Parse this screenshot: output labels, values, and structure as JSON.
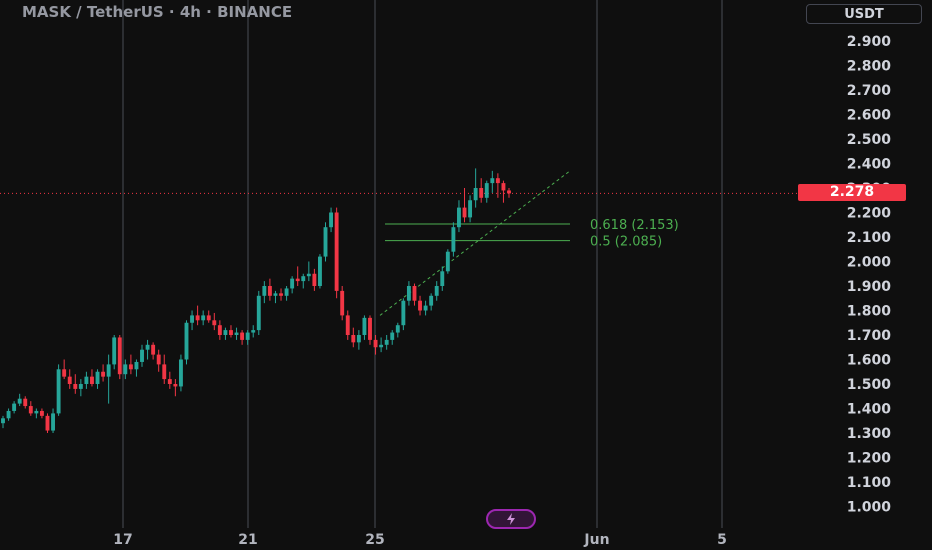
{
  "header": {
    "title": "MASK / TetherUS · 4h · BINANCE",
    "currency": "USDT"
  },
  "colors": {
    "background": "#0f0f0f",
    "up": "#26a69a",
    "down": "#f23645",
    "grid": "#4a4d55",
    "fib": "#4caf50",
    "text": "#d1d4dc",
    "replay": "#9c27b0"
  },
  "icons": {
    "replay": "lightning-bolt-icon"
  },
  "chart_data": {
    "type": "candlestick",
    "symbol": "MASK / TetherUS",
    "interval": "4h",
    "exchange": "BINANCE",
    "y_axis": {
      "ticks": [
        "2.900",
        "2.800",
        "2.700",
        "2.600",
        "2.500",
        "2.400",
        "2.300",
        "2.200",
        "2.100",
        "2.000",
        "1.900",
        "1.800",
        "1.700",
        "1.600",
        "1.500",
        "1.400",
        "1.300",
        "1.200",
        "1.100",
        "1.000"
      ],
      "range": [
        1.0,
        2.9
      ]
    },
    "x_axis": {
      "ticks": [
        "17",
        "21",
        "25",
        "Jun",
        "5"
      ]
    },
    "last_price": "2.278",
    "fib_levels": [
      {
        "ratio": 0.618,
        "price": 2.153,
        "label": "0.618 (2.153)"
      },
      {
        "ratio": 0.5,
        "price": 2.085,
        "label": "0.5 (2.085)"
      }
    ],
    "candles": [
      [
        1.34,
        1.37,
        1.32,
        1.36
      ],
      [
        1.36,
        1.4,
        1.35,
        1.39
      ],
      [
        1.39,
        1.43,
        1.38,
        1.42
      ],
      [
        1.42,
        1.46,
        1.41,
        1.44
      ],
      [
        1.44,
        1.45,
        1.4,
        1.41
      ],
      [
        1.41,
        1.43,
        1.37,
        1.38
      ],
      [
        1.38,
        1.4,
        1.36,
        1.39
      ],
      [
        1.39,
        1.4,
        1.36,
        1.37
      ],
      [
        1.37,
        1.38,
        1.3,
        1.31
      ],
      [
        1.31,
        1.4,
        1.3,
        1.38
      ],
      [
        1.38,
        1.58,
        1.37,
        1.56
      ],
      [
        1.56,
        1.6,
        1.52,
        1.53
      ],
      [
        1.53,
        1.56,
        1.48,
        1.5
      ],
      [
        1.5,
        1.54,
        1.46,
        1.48
      ],
      [
        1.48,
        1.52,
        1.45,
        1.5
      ],
      [
        1.5,
        1.55,
        1.48,
        1.53
      ],
      [
        1.53,
        1.56,
        1.49,
        1.5
      ],
      [
        1.5,
        1.56,
        1.48,
        1.55
      ],
      [
        1.55,
        1.58,
        1.51,
        1.53
      ],
      [
        1.53,
        1.62,
        1.42,
        1.58
      ],
      [
        1.58,
        1.7,
        1.56,
        1.69
      ],
      [
        1.69,
        1.7,
        1.52,
        1.54
      ],
      [
        1.54,
        1.6,
        1.52,
        1.58
      ],
      [
        1.58,
        1.62,
        1.54,
        1.56
      ],
      [
        1.56,
        1.6,
        1.53,
        1.59
      ],
      [
        1.59,
        1.66,
        1.57,
        1.64
      ],
      [
        1.64,
        1.68,
        1.6,
        1.66
      ],
      [
        1.66,
        1.67,
        1.6,
        1.62
      ],
      [
        1.62,
        1.64,
        1.55,
        1.58
      ],
      [
        1.58,
        1.62,
        1.5,
        1.52
      ],
      [
        1.52,
        1.55,
        1.48,
        1.5
      ],
      [
        1.5,
        1.52,
        1.45,
        1.49
      ],
      [
        1.49,
        1.62,
        1.47,
        1.6
      ],
      [
        1.6,
        1.76,
        1.58,
        1.75
      ],
      [
        1.75,
        1.8,
        1.72,
        1.78
      ],
      [
        1.78,
        1.82,
        1.74,
        1.76
      ],
      [
        1.76,
        1.8,
        1.74,
        1.78
      ],
      [
        1.78,
        1.8,
        1.75,
        1.76
      ],
      [
        1.76,
        1.79,
        1.72,
        1.74
      ],
      [
        1.74,
        1.76,
        1.68,
        1.7
      ],
      [
        1.7,
        1.73,
        1.68,
        1.72
      ],
      [
        1.72,
        1.74,
        1.69,
        1.7
      ],
      [
        1.7,
        1.73,
        1.68,
        1.71
      ],
      [
        1.71,
        1.72,
        1.66,
        1.68
      ],
      [
        1.68,
        1.72,
        1.66,
        1.71
      ],
      [
        1.71,
        1.74,
        1.69,
        1.72
      ],
      [
        1.72,
        1.88,
        1.7,
        1.86
      ],
      [
        1.86,
        1.92,
        1.83,
        1.9
      ],
      [
        1.9,
        1.93,
        1.84,
        1.86
      ],
      [
        1.86,
        1.88,
        1.83,
        1.87
      ],
      [
        1.87,
        1.89,
        1.84,
        1.86
      ],
      [
        1.86,
        1.9,
        1.84,
        1.89
      ],
      [
        1.89,
        1.94,
        1.87,
        1.93
      ],
      [
        1.93,
        1.98,
        1.9,
        1.92
      ],
      [
        1.92,
        1.95,
        1.89,
        1.94
      ],
      [
        1.94,
        2.0,
        1.92,
        1.95
      ],
      [
        1.95,
        1.97,
        1.88,
        1.9
      ],
      [
        1.9,
        2.03,
        1.89,
        2.02
      ],
      [
        2.02,
        2.16,
        2.0,
        2.14
      ],
      [
        2.14,
        2.22,
        2.12,
        2.2
      ],
      [
        2.2,
        2.22,
        1.85,
        1.88
      ],
      [
        1.88,
        1.9,
        1.76,
        1.78
      ],
      [
        1.78,
        1.8,
        1.68,
        1.7
      ],
      [
        1.7,
        1.73,
        1.65,
        1.67
      ],
      [
        1.67,
        1.72,
        1.64,
        1.7
      ],
      [
        1.7,
        1.78,
        1.68,
        1.77
      ],
      [
        1.77,
        1.78,
        1.66,
        1.68
      ],
      [
        1.68,
        1.7,
        1.62,
        1.65
      ],
      [
        1.65,
        1.69,
        1.63,
        1.66
      ],
      [
        1.66,
        1.7,
        1.64,
        1.68
      ],
      [
        1.68,
        1.72,
        1.66,
        1.71
      ],
      [
        1.71,
        1.75,
        1.69,
        1.74
      ],
      [
        1.74,
        1.85,
        1.72,
        1.84
      ],
      [
        1.84,
        1.92,
        1.82,
        1.9
      ],
      [
        1.9,
        1.91,
        1.82,
        1.84
      ],
      [
        1.84,
        1.86,
        1.78,
        1.8
      ],
      [
        1.8,
        1.84,
        1.78,
        1.82
      ],
      [
        1.82,
        1.87,
        1.8,
        1.86
      ],
      [
        1.86,
        1.92,
        1.84,
        1.9
      ],
      [
        1.9,
        1.98,
        1.88,
        1.96
      ],
      [
        1.96,
        2.05,
        1.95,
        2.04
      ],
      [
        2.04,
        2.16,
        2.02,
        2.14
      ],
      [
        2.14,
        2.25,
        2.12,
        2.22
      ],
      [
        2.22,
        2.3,
        2.16,
        2.18
      ],
      [
        2.18,
        2.27,
        2.16,
        2.25
      ],
      [
        2.25,
        2.38,
        2.22,
        2.3
      ],
      [
        2.3,
        2.34,
        2.24,
        2.26
      ],
      [
        2.26,
        2.33,
        2.24,
        2.32
      ],
      [
        2.32,
        2.37,
        2.28,
        2.34
      ],
      [
        2.34,
        2.36,
        2.26,
        2.32
      ],
      [
        2.32,
        2.33,
        2.24,
        2.29
      ],
      [
        2.29,
        2.3,
        2.26,
        2.278
      ]
    ]
  }
}
